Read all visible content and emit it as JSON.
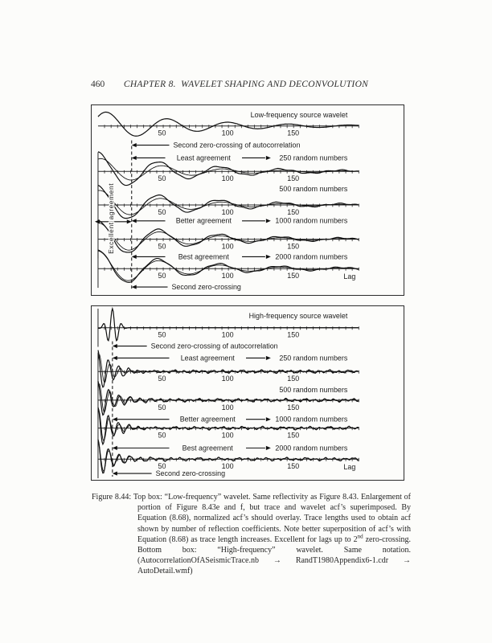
{
  "page": {
    "number": "460",
    "running_head": "CHAPTER 8.  WAVELET SHAPING AND DECONVOLUTION"
  },
  "figure": {
    "top_box": {
      "title": "Low-frequency source wavelet",
      "tick_labels": [
        "50",
        "100",
        "150"
      ],
      "lag_label": "Lag",
      "vertical_label": "Excellent agreement",
      "annotations": {
        "second_zero_full": "Second zero-crossing of autocorrelation",
        "least": "Least agreement",
        "least_target": "250 random numbers",
        "row_500": "500 random numbers",
        "better": "Better agreement",
        "better_target": "1000 random numbers",
        "best": "Best agreement",
        "best_target": "2000 random numbers",
        "second_zero_short": "Second zero-crossing"
      }
    },
    "bottom_box": {
      "title": "High-frequency source wavelet",
      "tick_labels": [
        "50",
        "100",
        "150"
      ],
      "lag_label": "Lag",
      "annotations": {
        "second_zero_full": "Second zero-crossing of autocorrelation",
        "least": "Least agreement",
        "least_target": "250 random numbers",
        "row_500": "500 random numbers",
        "better": "Better agreement",
        "better_target": "1000 random numbers",
        "best": "Best agreement",
        "best_target": "2000 random numbers",
        "second_zero_short": "Second zero-crossing"
      }
    }
  },
  "chart_data": [
    {
      "type": "line",
      "title": "Low-frequency source wavelet",
      "xlabel": "Lag",
      "x_ticks": [
        50,
        100,
        150
      ],
      "x_range": [
        0,
        200
      ],
      "traces": [
        {
          "name": "Low-frequency source wavelet"
        },
        {
          "name": "250 random numbers",
          "agreement": "Least agreement"
        },
        {
          "name": "500 random numbers"
        },
        {
          "name": "1000 random numbers",
          "agreement": "Better agreement"
        },
        {
          "name": "2000 random numbers",
          "agreement": "Best agreement"
        }
      ],
      "annotations": [
        "Second zero-crossing of autocorrelation",
        "Excellent agreement",
        "Second zero-crossing"
      ]
    },
    {
      "type": "line",
      "title": "High-frequency source wavelet",
      "xlabel": "Lag",
      "x_ticks": [
        50,
        100,
        150
      ],
      "x_range": [
        0,
        200
      ],
      "traces": [
        {
          "name": "High-frequency source wavelet"
        },
        {
          "name": "250 random numbers",
          "agreement": "Least agreement"
        },
        {
          "name": "500 random numbers"
        },
        {
          "name": "1000 random numbers",
          "agreement": "Better agreement"
        },
        {
          "name": "2000 random numbers",
          "agreement": "Best agreement"
        }
      ],
      "annotations": [
        "Second zero-crossing of autocorrelation",
        "Second zero-crossing"
      ]
    }
  ],
  "caption": {
    "label": "Figure 8.44:",
    "part1": " Top box: “Low-frequency” wavelet. Same reflectivity as Figure 8.43. Enlargement of portion of Figure 8.43e and f, but trace and wavelet acf’s superimposed. By Equation (8.68), normalized acf’s should overlay. Trace lengths used to obtain acf shown by number of reflection coefficients. Note better superposition of acf’s with Equation (8.68) as trace length increases. Excellent for lags up to 2",
    "sup": "nd",
    "part2": " zero-crossing. Bottom box: “High-frequency” wavelet. Same notation. (AutocorrelationOfASeismicTrace.nb → RandT1980Appendix6-1.cdr → AutoDetail.wmf)"
  }
}
